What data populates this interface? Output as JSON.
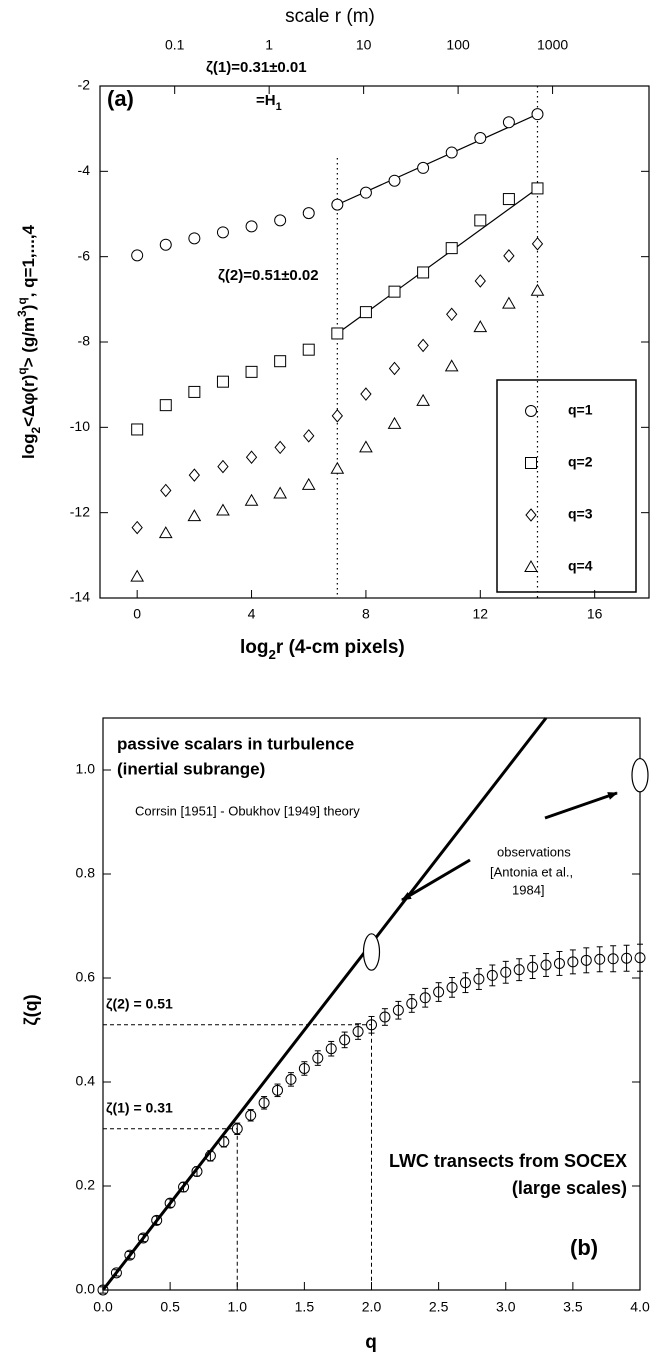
{
  "chart_data": [
    {
      "type": "scatter",
      "panel_label": "(a)",
      "x2label": "scale r (m)",
      "xlabel_parts": [
        "log",
        "2",
        "r  (4-cm  pixels)"
      ],
      "ylabel_parts": [
        "log",
        "2",
        "<Δφ(r)",
        "q",
        ">    (g/m",
        "3",
        ")",
        "q",
        ",   q=1,...,4"
      ],
      "xlim": [
        -1.3,
        17.9
      ],
      "xticks": [
        0,
        4,
        8,
        12,
        16
      ],
      "ylim": [
        -14,
        -2
      ],
      "yticks": [
        -14,
        -12,
        -10,
        -8,
        -6,
        -4,
        -2
      ],
      "x2scale": "log",
      "x2lim": [
        0.0162,
        10486
      ],
      "x2ticks": [
        0.1,
        1,
        10,
        100,
        1000
      ],
      "x": [
        0,
        1,
        2,
        3,
        4,
        5,
        6,
        7,
        8,
        9,
        10,
        11,
        12,
        13,
        14
      ],
      "series": [
        {
          "name": "q=1",
          "marker": "circle",
          "color": "#000000",
          "values": [
            -5.97,
            -5.72,
            -5.57,
            -5.43,
            -5.29,
            -5.15,
            -4.98,
            -4.78,
            -4.5,
            -4.22,
            -3.92,
            -3.56,
            -3.22,
            -2.85,
            -2.66
          ]
        },
        {
          "name": "q=2",
          "marker": "square",
          "color": "#000000",
          "values": [
            -10.05,
            -9.48,
            -9.17,
            -8.93,
            -8.7,
            -8.45,
            -8.18,
            -7.8,
            -7.3,
            -6.82,
            -6.37,
            -5.8,
            -5.15,
            -4.65,
            -4.4
          ]
        },
        {
          "name": "q=3",
          "marker": "diamond",
          "color": "#000000",
          "values": [
            -12.35,
            -11.48,
            -11.12,
            -10.92,
            -10.7,
            -10.47,
            -10.2,
            -9.73,
            -9.22,
            -8.62,
            -8.08,
            -7.35,
            -6.57,
            -5.98,
            -5.7
          ]
        },
        {
          "name": "q=4",
          "marker": "triangle",
          "color": "#000000",
          "values": [
            -13.5,
            -12.48,
            -12.08,
            -11.95,
            -11.72,
            -11.55,
            -11.35,
            -10.97,
            -10.47,
            -9.92,
            -9.38,
            -8.57,
            -7.65,
            -7.1,
            -6.8
          ]
        }
      ],
      "fits": [
        {
          "x": [
            7,
            14
          ],
          "values": [
            -4.78,
            -2.66
          ]
        },
        {
          "x": [
            7,
            14
          ],
          "values": [
            -7.8,
            -4.4
          ]
        }
      ],
      "vlines": [
        7,
        14
      ],
      "annotations": [
        "ζ(1)=0.31±0.01",
        "=H",
        "1",
        "ζ(2)=0.51±0.02"
      ]
    },
    {
      "type": "errorbar",
      "panel_label": "(b)",
      "xlabel": "q",
      "ylabel": "ζ(q)",
      "xlim": [
        0,
        4
      ],
      "xticks": [
        {
          "value": 0,
          "label": "0.0"
        },
        {
          "value": 0.5,
          "label": "0.5"
        },
        {
          "value": 1,
          "label": "1.0"
        },
        {
          "value": 1.5,
          "label": "1.5"
        },
        {
          "value": 2,
          "label": "2.0"
        },
        {
          "value": 2.5,
          "label": "2.5"
        },
        {
          "value": 3,
          "label": "3.0"
        },
        {
          "value": 3.5,
          "label": "3.5"
        },
        {
          "value": 4,
          "label": "4.0"
        }
      ],
      "ylim": [
        0,
        1.1
      ],
      "yticks": [
        {
          "value": 0,
          "label": "0.0"
        },
        {
          "value": 0.2,
          "label": "0.2"
        },
        {
          "value": 0.4,
          "label": "0.4"
        },
        {
          "value": 0.6,
          "label": "0.6"
        },
        {
          "value": 0.8,
          "label": "0.8"
        },
        {
          "value": 1,
          "label": "1.0"
        }
      ],
      "x": [
        0,
        0.1,
        0.2,
        0.3,
        0.4,
        0.5,
        0.6,
        0.7,
        0.8,
        0.9,
        1.0,
        1.1,
        1.2,
        1.3,
        1.4,
        1.5,
        1.6,
        1.7,
        1.8,
        1.9,
        2.0,
        2.1,
        2.2,
        2.3,
        2.4,
        2.5,
        2.6,
        2.7,
        2.8,
        2.9,
        3.0,
        3.1,
        3.2,
        3.3,
        3.4,
        3.5,
        3.6,
        3.7,
        3.8,
        3.9,
        4.0
      ],
      "values": [
        0,
        0.033,
        0.067,
        0.1,
        0.134,
        0.167,
        0.198,
        0.228,
        0.258,
        0.285,
        0.31,
        0.336,
        0.36,
        0.384,
        0.405,
        0.426,
        0.446,
        0.464,
        0.481,
        0.497,
        0.51,
        0.525,
        0.538,
        0.551,
        0.562,
        0.573,
        0.582,
        0.591,
        0.598,
        0.605,
        0.611,
        0.616,
        0.621,
        0.625,
        0.628,
        0.631,
        0.634,
        0.636,
        0.637,
        0.638,
        0.639
      ],
      "errors": [
        0.006,
        0.006,
        0.007,
        0.007,
        0.008,
        0.008,
        0.009,
        0.009,
        0.01,
        0.01,
        0.011,
        0.011,
        0.012,
        0.012,
        0.013,
        0.013,
        0.014,
        0.014,
        0.015,
        0.015,
        0.016,
        0.016,
        0.017,
        0.017,
        0.018,
        0.018,
        0.019,
        0.019,
        0.02,
        0.02,
        0.021,
        0.021,
        0.022,
        0.022,
        0.023,
        0.023,
        0.024,
        0.024,
        0.025,
        0.025,
        0.026
      ],
      "theory": {
        "x": [
          0,
          3.3
        ],
        "values": [
          0,
          1.1
        ]
      },
      "observations": {
        "x": [
          2,
          4
        ],
        "values": [
          0.65,
          0.99
        ],
        "errors": [
          0.035,
          0.032
        ]
      },
      "refs": [
        {
          "label": "ζ(1)  =  0.31",
          "x": 1,
          "value": 0.31
        },
        {
          "label": "ζ(2)  =  0.51",
          "x": 2,
          "value": 0.51
        }
      ],
      "annotations": [
        "passive scalars in turbulence",
        "(inertial subrange)",
        "Corrsin [1951] - Obukhov [1949] theory",
        "observations",
        "[Antonia et al.,",
        "1984]",
        "LWC transects from SOCEX",
        "(large scales)"
      ]
    }
  ]
}
